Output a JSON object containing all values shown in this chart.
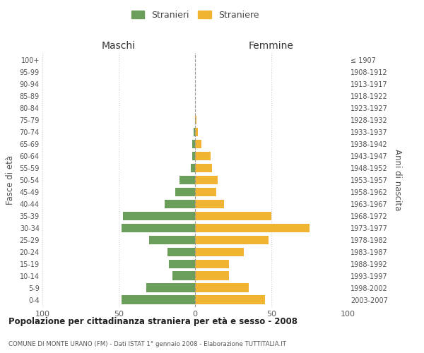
{
  "age_groups": [
    "0-4",
    "5-9",
    "10-14",
    "15-19",
    "20-24",
    "25-29",
    "30-34",
    "35-39",
    "40-44",
    "45-49",
    "50-54",
    "55-59",
    "60-64",
    "65-69",
    "70-74",
    "75-79",
    "80-84",
    "85-89",
    "90-94",
    "95-99",
    "100+"
  ],
  "birth_years": [
    "2003-2007",
    "1998-2002",
    "1993-1997",
    "1988-1992",
    "1983-1987",
    "1978-1982",
    "1973-1977",
    "1968-1972",
    "1963-1967",
    "1958-1962",
    "1953-1957",
    "1948-1952",
    "1943-1947",
    "1938-1942",
    "1933-1937",
    "1928-1932",
    "1923-1927",
    "1918-1922",
    "1913-1917",
    "1908-1912",
    "≤ 1907"
  ],
  "maschi": [
    48,
    32,
    15,
    17,
    18,
    30,
    48,
    47,
    20,
    13,
    10,
    3,
    2,
    2,
    1,
    0,
    0,
    0,
    0,
    0,
    0
  ],
  "femmine": [
    46,
    35,
    22,
    22,
    32,
    48,
    75,
    50,
    19,
    14,
    15,
    11,
    10,
    4,
    2,
    1,
    0,
    0,
    0,
    0,
    0
  ],
  "maschi_color": "#6a9e5a",
  "femmine_color": "#f0b432",
  "legend_maschi": "Stranieri",
  "legend_femmine": "Straniere",
  "title_maschi": "Maschi",
  "title_femmine": "Femmine",
  "ylabel_left": "Fasce di età",
  "ylabel_right": "Anni di nascita",
  "xlim": 100,
  "main_title": "Popolazione per cittadinanza straniera per età e sesso - 2008",
  "subtitle": "COMUNE DI MONTE URANO (FM) - Dati ISTAT 1° gennaio 2008 - Elaborazione TUTTITALIA.IT",
  "background_color": "#ffffff",
  "grid_color": "#cccccc",
  "bar_height": 0.75
}
